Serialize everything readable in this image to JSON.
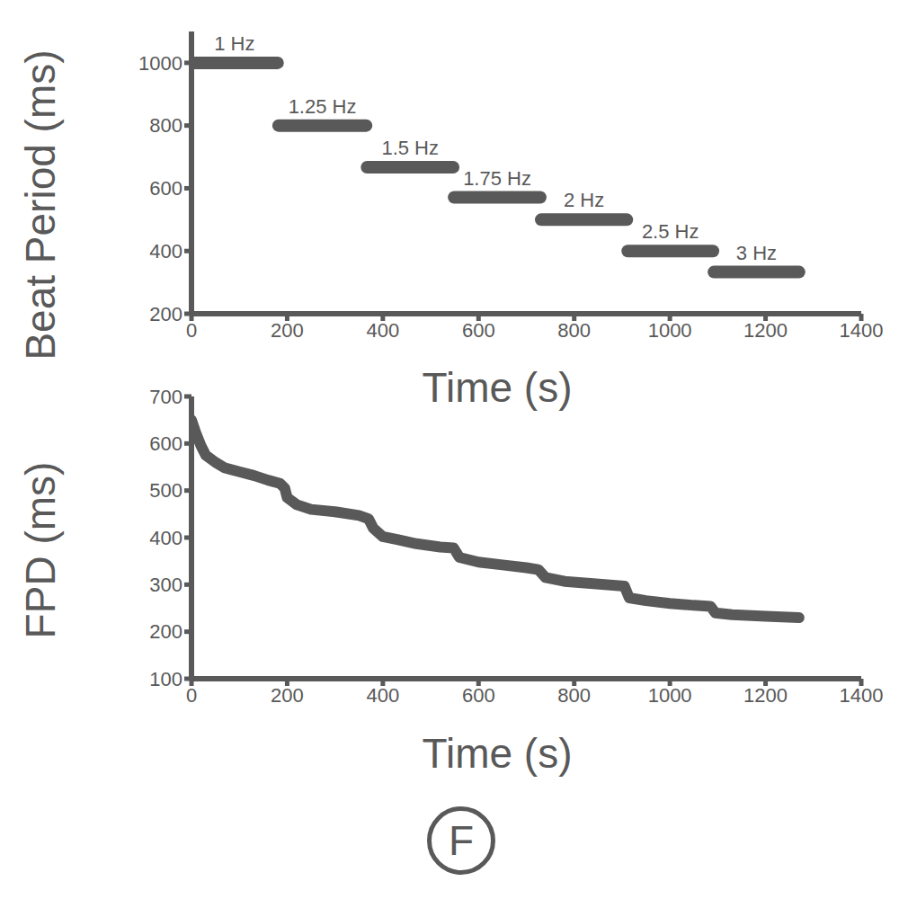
{
  "panel_label": "F",
  "chart_data": [
    {
      "type": "line",
      "x_label": "Time (s)",
      "y_label": "Beat Period (ms)",
      "series": [
        {
          "name": "1 Hz",
          "color": "#595959",
          "x": [
            0,
            180
          ],
          "values": [
            1000,
            1000
          ]
        },
        {
          "name": "1.25 Hz",
          "color": "#595959",
          "x": [
            182,
            365
          ],
          "values": [
            800,
            800
          ]
        },
        {
          "name": "1.5 Hz",
          "color": "#595959",
          "x": [
            367,
            547
          ],
          "values": [
            667,
            667
          ]
        },
        {
          "name": "1.75 Hz",
          "color": "#595959",
          "x": [
            549,
            729
          ],
          "values": [
            571,
            571
          ]
        },
        {
          "name": "2 Hz",
          "color": "#595959",
          "x": [
            731,
            910
          ],
          "values": [
            500,
            500
          ]
        },
        {
          "name": "2.5 Hz",
          "color": "#595959",
          "x": [
            912,
            1090
          ],
          "values": [
            400,
            400
          ]
        },
        {
          "name": "3 Hz",
          "color": "#595959",
          "x": [
            1092,
            1270
          ],
          "values": [
            333,
            333
          ]
        }
      ],
      "xlim": [
        0,
        1400
      ],
      "xticks": [
        0,
        200,
        400,
        600,
        800,
        1000,
        1200,
        1400
      ],
      "ylim": [
        200,
        1100
      ],
      "yticks": [
        200,
        400,
        600,
        800,
        1000
      ]
    },
    {
      "type": "line",
      "x_label": "Time (s)",
      "y_label": "FPD (ms)",
      "color": "#595959",
      "x": [
        0,
        10,
        20,
        30,
        50,
        70,
        100,
        130,
        160,
        185,
        195,
        200,
        220,
        250,
        300,
        350,
        370,
        380,
        400,
        430,
        470,
        520,
        548,
        560,
        600,
        650,
        700,
        725,
        740,
        780,
        840,
        905,
        915,
        950,
        1000,
        1050,
        1085,
        1095,
        1130,
        1200,
        1270
      ],
      "values": [
        650,
        620,
        595,
        575,
        560,
        548,
        540,
        532,
        522,
        515,
        505,
        485,
        470,
        460,
        455,
        447,
        440,
        420,
        402,
        396,
        387,
        380,
        378,
        358,
        348,
        342,
        336,
        332,
        315,
        307,
        302,
        297,
        272,
        266,
        260,
        256,
        254,
        240,
        236,
        233,
        230
      ],
      "xlim": [
        0,
        1400
      ],
      "xticks": [
        0,
        200,
        400,
        600,
        800,
        1000,
        1200,
        1400
      ],
      "ylim": [
        100,
        700
      ],
      "yticks": [
        100,
        200,
        300,
        400,
        500,
        600,
        700
      ]
    }
  ]
}
